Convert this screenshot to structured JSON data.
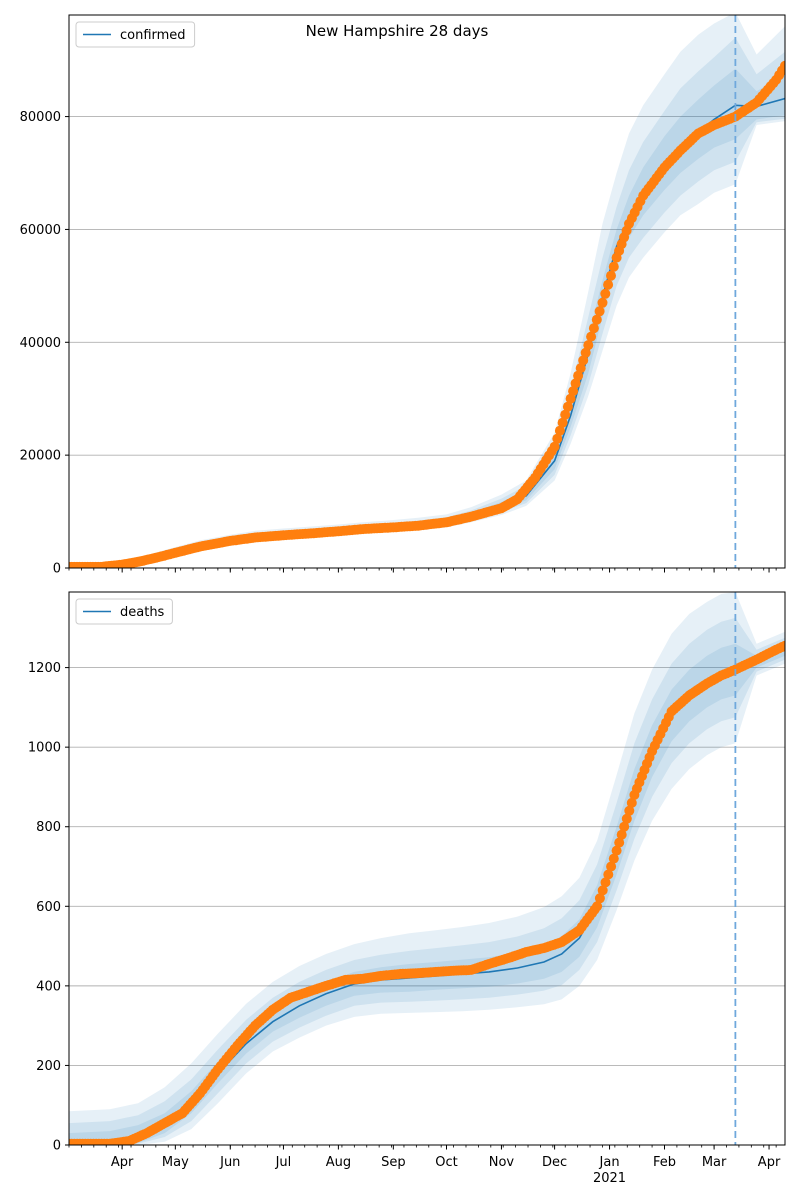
{
  "figure": {
    "title": "New Hampshire 28 days"
  },
  "chart_data": [
    {
      "type": "line",
      "name": "confirmed",
      "legend": {
        "label": "confirmed",
        "position": "upper-left"
      },
      "ylim": [
        0,
        98000
      ],
      "xlim": [
        "2020-03-02",
        "2021-04-10"
      ],
      "yticks": [
        0,
        20000,
        40000,
        60000,
        80000
      ],
      "ytick_labels": [
        "0",
        "20000",
        "40000",
        "60000",
        "80000"
      ],
      "grid": "horizontal",
      "forecast_start": "2021-03-13",
      "model_curve": {
        "x": [
          "2020-03-02",
          "2020-03-20",
          "2020-04-01",
          "2020-04-15",
          "2020-05-01",
          "2020-05-15",
          "2020-06-01",
          "2020-06-15",
          "2020-07-01",
          "2020-07-15",
          "2020-08-01",
          "2020-08-15",
          "2020-09-01",
          "2020-09-15",
          "2020-10-01",
          "2020-10-15",
          "2020-11-01",
          "2020-11-15",
          "2020-12-01",
          "2020-12-10",
          "2020-12-20",
          "2020-12-28",
          "2021-01-05",
          "2021-01-12",
          "2021-01-20",
          "2021-02-01",
          "2021-02-10",
          "2021-02-20",
          "2021-03-01",
          "2021-03-13",
          "2021-03-25",
          "2021-04-10"
        ],
        "y": [
          0,
          100,
          500,
          1500,
          2700,
          3900,
          4900,
          5600,
          6000,
          6300,
          6700,
          7000,
          7300,
          7600,
          8200,
          9300,
          11000,
          12800,
          19000,
          27000,
          38000,
          48000,
          57000,
          62000,
          66500,
          71500,
          74500,
          77200,
          79500,
          82000,
          81800,
          83200
        ]
      },
      "bands": [
        {
          "level": "inner",
          "upper": [
            200,
            200,
            800,
            1800,
            3000,
            4200,
            5200,
            5900,
            6300,
            6600,
            7000,
            7400,
            7700,
            8000,
            8600,
            9800,
            11700,
            13800,
            20500,
            29000,
            41000,
            51000,
            60000,
            66000,
            71000,
            76500,
            80000,
            83000,
            85500,
            88500,
            84500,
            87500
          ],
          "lower": [
            0,
            0,
            300,
            1200,
            2400,
            3600,
            4600,
            5300,
            5700,
            6000,
            6400,
            6700,
            7000,
            7300,
            7800,
            8800,
            10400,
            12000,
            17500,
            25000,
            34500,
            44500,
            53500,
            58500,
            62500,
            67000,
            70000,
            72500,
            74500,
            76000,
            79500,
            80200
          ]
        },
        {
          "level": "middle",
          "upper": [
            300,
            300,
            1000,
            2000,
            3300,
            4500,
            5500,
            6200,
            6600,
            6900,
            7300,
            7700,
            8000,
            8400,
            9000,
            10200,
            12300,
            14600,
            22000,
            31500,
            44500,
            55000,
            64000,
            70500,
            75500,
            81000,
            85000,
            88000,
            90500,
            94000,
            87500,
            91500
          ],
          "lower": [
            0,
            0,
            200,
            1000,
            2200,
            3400,
            4300,
            5000,
            5400,
            5700,
            6100,
            6400,
            6700,
            7000,
            7500,
            8500,
            9900,
            11500,
            16500,
            23500,
            32500,
            41500,
            50000,
            55000,
            58500,
            63000,
            66000,
            68500,
            70500,
            72000,
            79000,
            79600
          ]
        },
        {
          "level": "outer",
          "upper": [
            400,
            400,
            1200,
            2300,
            3700,
            4900,
            5900,
            6600,
            7000,
            7300,
            7700,
            8100,
            8500,
            8900,
            9500,
            10800,
            13000,
            15500,
            24000,
            34500,
            49000,
            61000,
            70000,
            77000,
            82000,
            87500,
            91500,
            94500,
            96500,
            98500,
            91000,
            96000
          ],
          "lower": [
            0,
            0,
            100,
            800,
            2000,
            3100,
            4000,
            4700,
            5100,
            5400,
            5800,
            6100,
            6400,
            6700,
            7200,
            8100,
            9400,
            11000,
            15500,
            22000,
            30500,
            38500,
            46500,
            51500,
            55000,
            59500,
            62500,
            64500,
            66500,
            68000,
            78500,
            79200
          ]
        }
      ],
      "observed": {
        "x": [
          "2020-03-02",
          "2020-03-20",
          "2020-04-01",
          "2020-04-10",
          "2020-04-20",
          "2020-05-01",
          "2020-05-15",
          "2020-06-01",
          "2020-06-15",
          "2020-07-01",
          "2020-07-15",
          "2020-08-01",
          "2020-08-15",
          "2020-09-01",
          "2020-09-15",
          "2020-10-01",
          "2020-10-15",
          "2020-11-01",
          "2020-11-10",
          "2020-11-20",
          "2020-12-01",
          "2020-12-10",
          "2020-12-20",
          "2020-12-28",
          "2021-01-05",
          "2021-01-12",
          "2021-01-20",
          "2021-02-01",
          "2021-02-10",
          "2021-02-20",
          "2021-03-01",
          "2021-03-13",
          "2021-03-25",
          "2021-04-05",
          "2021-04-10"
        ],
        "y": [
          200,
          200,
          600,
          1100,
          1800,
          2700,
          3800,
          4800,
          5400,
          5800,
          6100,
          6500,
          6900,
          7200,
          7500,
          8100,
          9100,
          10600,
          12200,
          16000,
          21500,
          30000,
          39500,
          47000,
          55000,
          61000,
          66000,
          71000,
          74000,
          77000,
          78500,
          80000,
          82500,
          86500,
          89000
        ]
      }
    },
    {
      "type": "line",
      "name": "deaths",
      "legend": {
        "label": "deaths",
        "position": "upper-left"
      },
      "ylim": [
        0,
        1390
      ],
      "xlim": [
        "2020-03-02",
        "2021-04-10"
      ],
      "yticks": [
        0,
        200,
        400,
        600,
        800,
        1000,
        1200
      ],
      "ytick_labels": [
        "0",
        "200",
        "400",
        "600",
        "800",
        "1000",
        "1200"
      ],
      "grid": "horizontal",
      "forecast_start": "2021-03-13",
      "xtick_labels": [
        "Apr",
        "May",
        "Jun",
        "Jul",
        "Aug",
        "Sep",
        "Oct",
        "Nov",
        "Dec",
        "Jan",
        "Feb",
        "Mar",
        "Apr"
      ],
      "xtick_dates": [
        "2020-04-01",
        "2020-05-01",
        "2020-06-01",
        "2020-07-01",
        "2020-08-01",
        "2020-09-01",
        "2020-10-01",
        "2020-11-01",
        "2020-12-01",
        "2021-01-01",
        "2021-02-01",
        "2021-03-01",
        "2021-04-01"
      ],
      "year_label": "2021",
      "model_curve": {
        "x": [
          "2020-03-02",
          "2020-03-25",
          "2020-04-10",
          "2020-04-25",
          "2020-05-10",
          "2020-05-25",
          "2020-06-10",
          "2020-06-25",
          "2020-07-10",
          "2020-07-25",
          "2020-08-10",
          "2020-08-25",
          "2020-09-10",
          "2020-09-25",
          "2020-10-10",
          "2020-10-25",
          "2020-11-10",
          "2020-11-25",
          "2020-12-05",
          "2020-12-15",
          "2020-12-25",
          "2021-01-05",
          "2021-01-15",
          "2021-01-25",
          "2021-02-05",
          "2021-02-15",
          "2021-02-25",
          "2021-03-05",
          "2021-03-13",
          "2021-03-25",
          "2021-04-10"
        ],
        "y": [
          5,
          8,
          20,
          50,
          105,
          180,
          255,
          310,
          350,
          380,
          405,
          415,
          420,
          425,
          430,
          435,
          445,
          460,
          480,
          520,
          600,
          740,
          880,
          990,
          1080,
          1130,
          1165,
          1185,
          1195,
          1215,
          1245
        ]
      },
      "bands": [
        {
          "level": "inner",
          "upper": [
            30,
            35,
            50,
            80,
            135,
            210,
            285,
            340,
            380,
            410,
            435,
            447,
            455,
            460,
            466,
            472,
            484,
            502,
            525,
            567,
            653,
            800,
            945,
            1055,
            1145,
            1195,
            1230,
            1250,
            1260,
            1230,
            1260
          ],
          "lower": [
            0,
            0,
            5,
            30,
            80,
            155,
            230,
            285,
            320,
            350,
            375,
            383,
            385,
            390,
            394,
            398,
            406,
            418,
            435,
            473,
            547,
            680,
            815,
            925,
            1015,
            1065,
            1100,
            1120,
            1130,
            1200,
            1230
          ]
        },
        {
          "level": "middle",
          "upper": [
            55,
            60,
            75,
            110,
            165,
            240,
            315,
            370,
            410,
            440,
            465,
            478,
            488,
            495,
            502,
            510,
            524,
            545,
            570,
            615,
            705,
            860,
            1010,
            1120,
            1210,
            1260,
            1295,
            1315,
            1325,
            1245,
            1275
          ],
          "lower": [
            0,
            0,
            3,
            20,
            60,
            130,
            205,
            260,
            295,
            325,
            350,
            358,
            360,
            363,
            366,
            370,
            378,
            388,
            402,
            440,
            510,
            640,
            770,
            875,
            960,
            1010,
            1045,
            1065,
            1075,
            1190,
            1220
          ]
        },
        {
          "level": "outer",
          "upper": [
            85,
            90,
            105,
            145,
            205,
            280,
            355,
            410,
            450,
            480,
            505,
            520,
            532,
            540,
            548,
            558,
            574,
            598,
            625,
            672,
            765,
            930,
            1085,
            1195,
            1285,
            1335,
            1365,
            1385,
            1390,
            1260,
            1290
          ],
          "lower": [
            0,
            0,
            0,
            8,
            40,
            105,
            180,
            235,
            270,
            300,
            322,
            330,
            332,
            334,
            336,
            340,
            346,
            354,
            366,
            400,
            465,
            590,
            715,
            815,
            895,
            945,
            980,
            1000,
            1010,
            1180,
            1210
          ]
        }
      ],
      "observed": {
        "x": [
          "2020-03-02",
          "2020-03-25",
          "2020-04-05",
          "2020-04-15",
          "2020-04-25",
          "2020-05-05",
          "2020-05-15",
          "2020-05-25",
          "2020-06-05",
          "2020-06-15",
          "2020-06-25",
          "2020-07-05",
          "2020-07-15",
          "2020-07-25",
          "2020-08-05",
          "2020-08-15",
          "2020-08-25",
          "2020-09-05",
          "2020-09-15",
          "2020-09-25",
          "2020-10-05",
          "2020-10-15",
          "2020-10-25",
          "2020-11-05",
          "2020-11-15",
          "2020-11-25",
          "2020-12-05",
          "2020-12-15",
          "2020-12-25",
          "2021-01-05",
          "2021-01-15",
          "2021-01-25",
          "2021-02-05",
          "2021-02-15",
          "2021-02-25",
          "2021-03-05",
          "2021-03-13",
          "2021-03-25",
          "2021-04-05",
          "2021-04-10"
        ],
        "y": [
          3,
          3,
          10,
          30,
          55,
          80,
          130,
          190,
          250,
          300,
          340,
          370,
          385,
          400,
          415,
          418,
          425,
          430,
          432,
          435,
          438,
          440,
          455,
          470,
          485,
          495,
          510,
          540,
          600,
          740,
          880,
          990,
          1090,
          1130,
          1160,
          1180,
          1195,
          1220,
          1245,
          1255
        ]
      }
    }
  ],
  "colors": {
    "model_line": "#1f77b4",
    "observed_points": "#ff7f0e",
    "band_fill": "#1f77b4",
    "forecast_line": "#6fa8dc",
    "grid": "#b0b0b0"
  }
}
